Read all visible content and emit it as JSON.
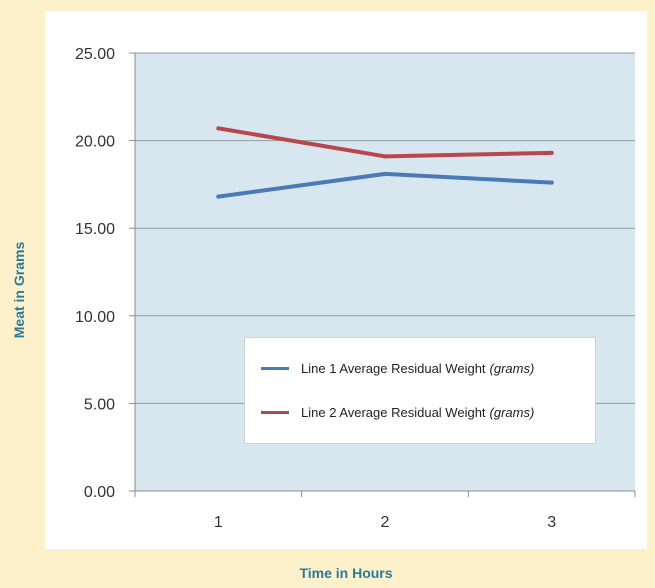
{
  "chart_data": {
    "type": "line",
    "categories": [
      "1",
      "2",
      "3"
    ],
    "series": [
      {
        "name": "Line 1 Average Residual Weight",
        "unit": "(grams)",
        "values": [
          16.8,
          18.1,
          17.6
        ],
        "color": "#4a7ab8"
      },
      {
        "name": "Line 2 Average Residual Weight",
        "unit": "(grams)",
        "values": [
          20.7,
          19.1,
          19.3
        ],
        "color": "#b8474c"
      }
    ],
    "xlabel": "Time in Hours",
    "ylabel": "Meat in Grams",
    "ylim": [
      0,
      25
    ],
    "yticks": [
      "0.00",
      "5.00",
      "10.00",
      "15.00",
      "20.00",
      "25.00"
    ],
    "grid": true,
    "legend_position": "lower-right",
    "plot_background": "#d7e6ef",
    "page_background": "#fdf1cc",
    "title_color": "#2a7a9a"
  }
}
